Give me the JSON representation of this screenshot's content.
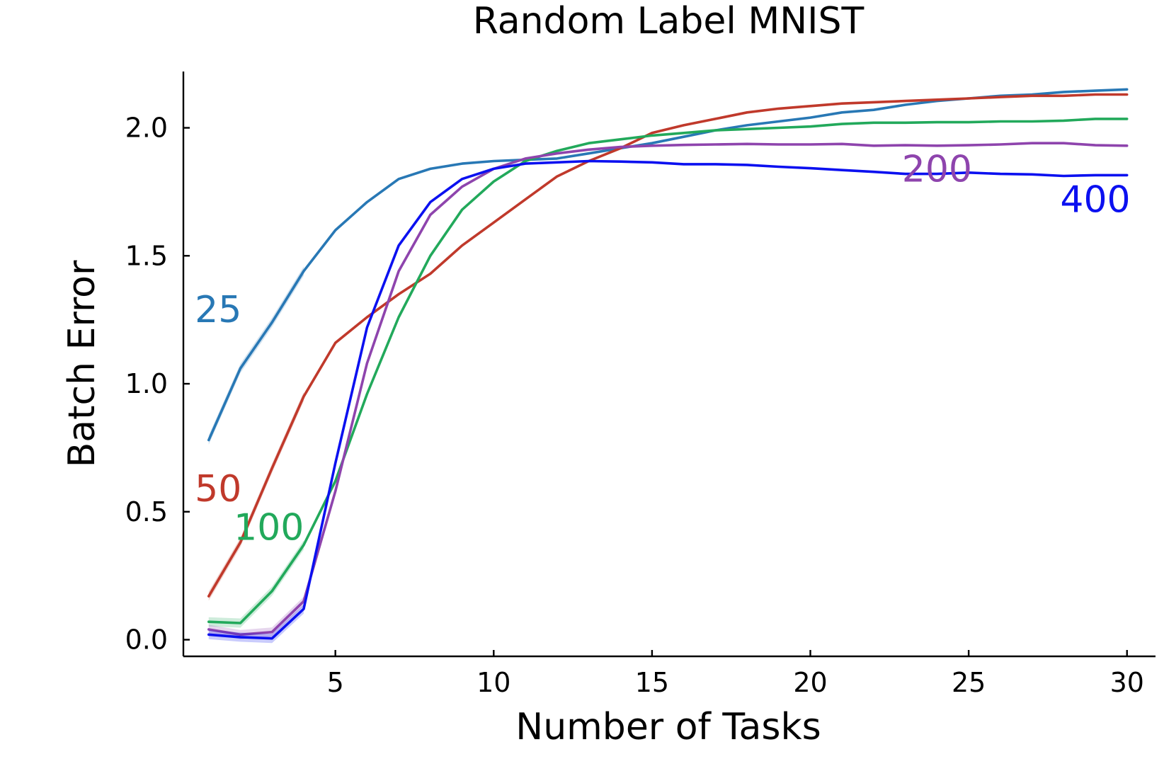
{
  "chart_data": {
    "type": "line",
    "title": "Random Label MNIST",
    "xlabel": "Number of Tasks",
    "ylabel": "Batch Error",
    "xlim": [
      0.2,
      30.9
    ],
    "ylim": [
      -0.065,
      2.22
    ],
    "x_ticks": [
      5,
      10,
      15,
      20,
      25,
      30
    ],
    "y_ticks": [
      0.0,
      0.5,
      1.0,
      1.5,
      2.0
    ],
    "x_tick_labels": [
      "5",
      "10",
      "15",
      "20",
      "25",
      "30"
    ],
    "y_tick_labels": [
      "0.0",
      "0.5",
      "1.0",
      "1.5",
      "2.0"
    ],
    "grid": false,
    "legend": "none (inline series labels)",
    "x": [
      1,
      2,
      3,
      4,
      5,
      6,
      7,
      8,
      9,
      10,
      11,
      12,
      13,
      14,
      15,
      16,
      17,
      18,
      19,
      20,
      21,
      22,
      23,
      24,
      25,
      26,
      27,
      28,
      29,
      30
    ],
    "series": [
      {
        "name": "25",
        "color": "#2878b5",
        "label_anchor": [
          1.3,
          1.29
        ],
        "values": [
          0.78,
          1.06,
          1.24,
          1.44,
          1.6,
          1.71,
          1.8,
          1.84,
          1.86,
          1.87,
          1.875,
          1.88,
          1.9,
          1.92,
          1.94,
          1.965,
          1.99,
          2.01,
          2.025,
          2.04,
          2.06,
          2.07,
          2.09,
          2.105,
          2.115,
          2.125,
          2.13,
          2.14,
          2.145,
          2.15
        ]
      },
      {
        "name": "50",
        "color": "#c0392b",
        "label_anchor": [
          1.3,
          0.59
        ],
        "values": [
          0.17,
          0.38,
          0.67,
          0.95,
          1.16,
          1.26,
          1.35,
          1.43,
          1.54,
          1.63,
          1.72,
          1.81,
          1.87,
          1.92,
          1.98,
          2.01,
          2.035,
          2.06,
          2.075,
          2.085,
          2.095,
          2.1,
          2.105,
          2.11,
          2.115,
          2.12,
          2.125,
          2.125,
          2.13,
          2.13
        ]
      },
      {
        "name": "100",
        "color": "#22a95b",
        "label_anchor": [
          2.9,
          0.44
        ],
        "values": [
          0.07,
          0.065,
          0.19,
          0.37,
          0.62,
          0.96,
          1.26,
          1.5,
          1.68,
          1.79,
          1.87,
          1.91,
          1.94,
          1.955,
          1.97,
          1.98,
          1.99,
          1.995,
          2.0,
          2.005,
          2.015,
          2.02,
          2.02,
          2.022,
          2.022,
          2.025,
          2.025,
          2.028,
          2.035,
          2.035
        ]
      },
      {
        "name": "200",
        "color": "#8e44ad",
        "label_anchor": [
          24.0,
          1.84
        ],
        "values": [
          0.04,
          0.02,
          0.03,
          0.15,
          0.58,
          1.08,
          1.44,
          1.66,
          1.77,
          1.84,
          1.88,
          1.9,
          1.915,
          1.925,
          1.93,
          1.933,
          1.935,
          1.937,
          1.935,
          1.935,
          1.937,
          1.93,
          1.932,
          1.93,
          1.932,
          1.935,
          1.94,
          1.94,
          1.932,
          1.93
        ]
      },
      {
        "name": "400",
        "color": "#0b10f0",
        "label_anchor": [
          29.0,
          1.72
        ],
        "values": [
          0.02,
          0.01,
          0.005,
          0.12,
          0.69,
          1.22,
          1.54,
          1.71,
          1.8,
          1.84,
          1.86,
          1.865,
          1.87,
          1.868,
          1.865,
          1.858,
          1.858,
          1.855,
          1.848,
          1.842,
          1.835,
          1.828,
          1.82,
          1.82,
          1.825,
          1.82,
          1.818,
          1.812,
          1.815,
          1.815
        ]
      }
    ]
  }
}
